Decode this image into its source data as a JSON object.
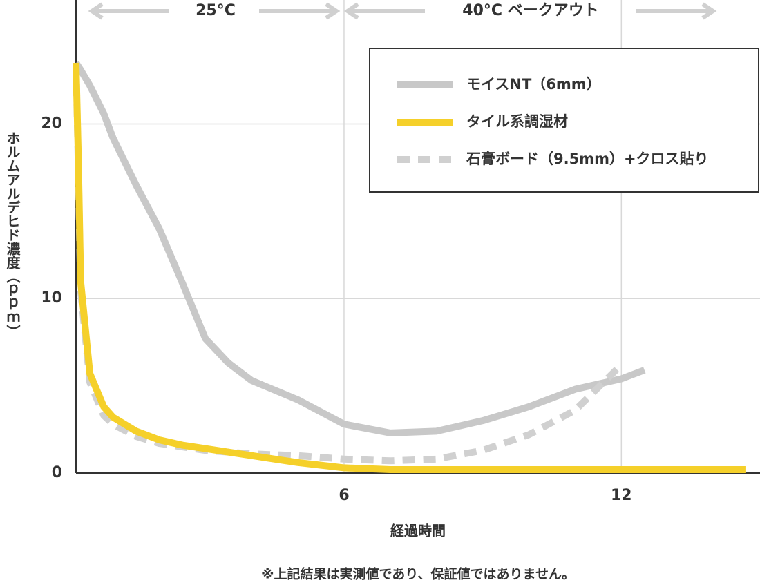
{
  "chart_data": {
    "type": "line",
    "annotations": [
      "25°C",
      "40°C ベークアウト"
    ],
    "xlabel": "経過時間",
    "ylabel": "ホルムアルデヒド濃度（ｐｐｍ）",
    "footnote": "※上記結果は実測値であり、保証値ではありません。",
    "x": [
      0.2,
      0.25,
      0.3,
      0.5,
      0.8,
      1,
      1.5,
      2,
      2.5,
      3,
      3.5,
      4,
      5,
      6,
      7,
      8,
      9,
      10,
      11,
      12,
      12.5,
      13,
      14,
      14.7
    ],
    "series": [
      {
        "name": "モイスNT（6mm）",
        "color": "#c8c8c8",
        "line_style": "solid",
        "values": [
          23.5,
          23.3,
          23.1,
          22.2,
          20.6,
          19.2,
          16.5,
          14,
          10.9,
          7.7,
          6.3,
          5.3,
          4.2,
          2.8,
          2.3,
          2.4,
          3.0,
          3.8,
          4.8,
          5.4,
          5.9,
          null,
          null,
          null
        ]
      },
      {
        "name": "タイル系調湿材",
        "color": "#f5d02a",
        "line_style": "solid",
        "values": [
          23.5,
          18,
          11,
          5.7,
          3.8,
          3.2,
          2.4,
          1.9,
          1.6,
          1.4,
          1.2,
          1.0,
          0.6,
          0.3,
          0.2,
          0.2,
          0.2,
          0.2,
          0.2,
          0.2,
          0.2,
          0.2,
          0.2,
          0.2
        ]
      },
      {
        "name": "石膏ボード（9.5mm）+クロス貼り",
        "color": "#d0d0d0",
        "line_style": "dashed",
        "values": [
          23.5,
          17.5,
          10.5,
          5.2,
          3.3,
          2.8,
          2.1,
          1.7,
          1.5,
          1.3,
          1.2,
          1.1,
          1.0,
          0.8,
          0.7,
          0.8,
          1.3,
          2.2,
          3.6,
          6.2,
          null,
          null,
          null,
          null
        ]
      }
    ],
    "xlim": [
      0.2,
      15
    ],
    "ylim": [
      0,
      27.1
    ],
    "xticks": [
      6,
      12
    ],
    "yticks": [
      0,
      10,
      20
    ],
    "grid": true,
    "legend": "upper right"
  }
}
